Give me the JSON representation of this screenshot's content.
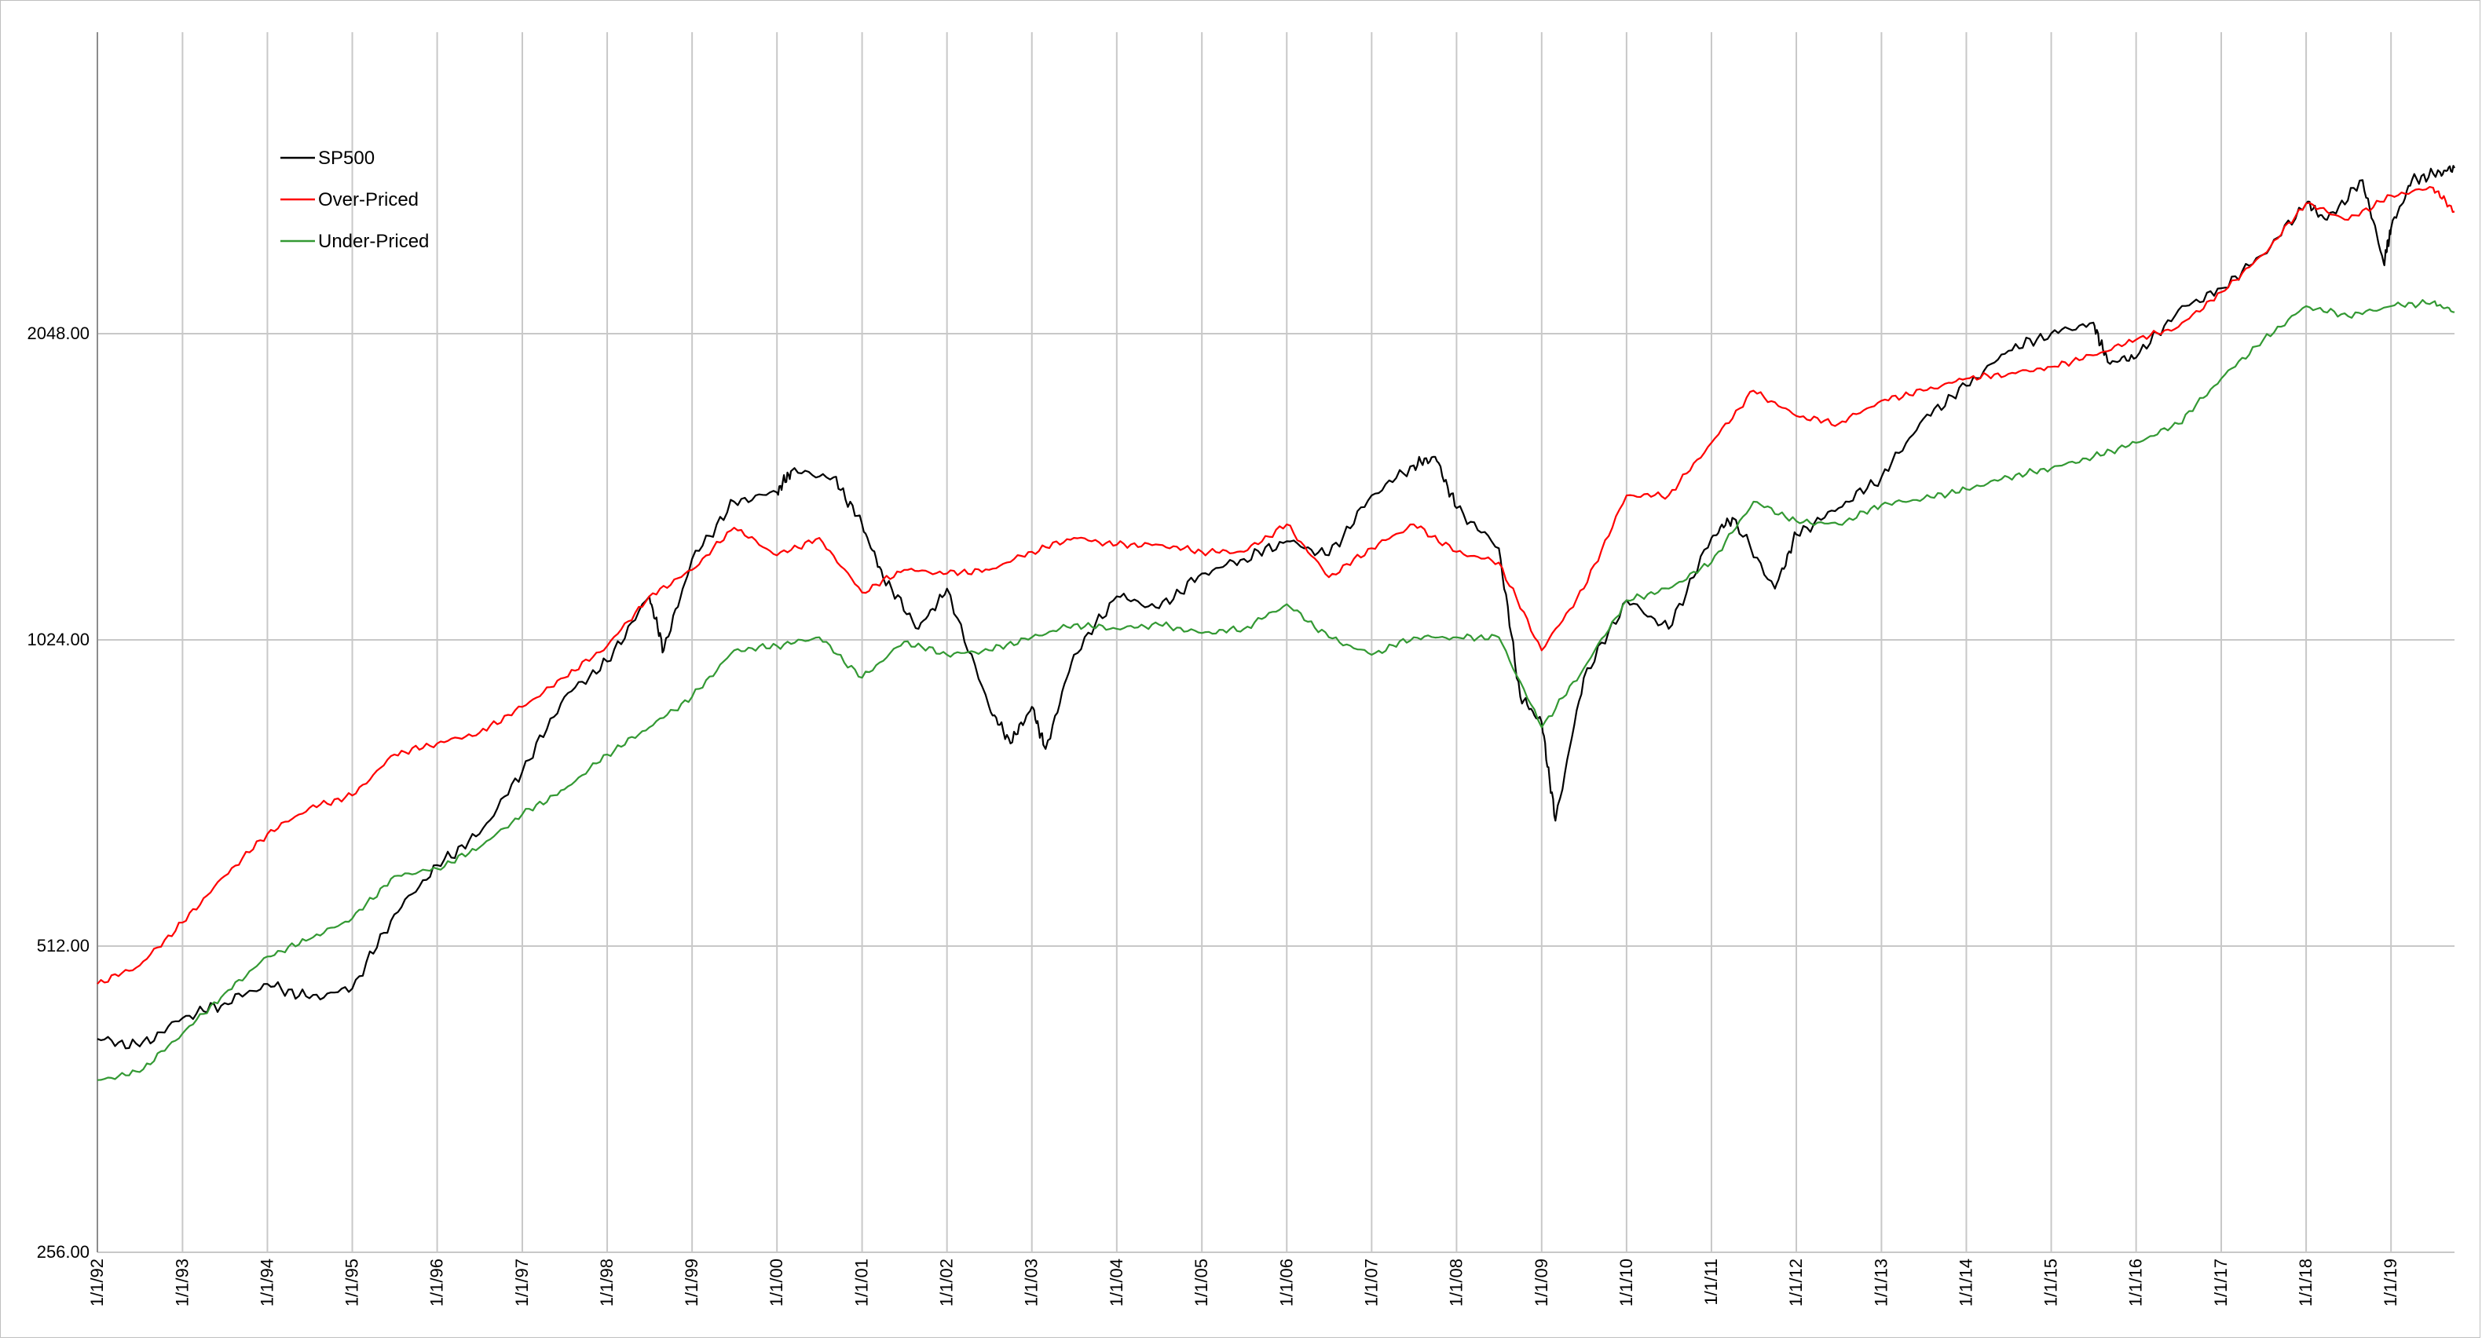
{
  "chart_data": {
    "type": "line",
    "title": "",
    "xlabel": "",
    "ylabel": "",
    "y_scale": "log2",
    "ylim": [
      256,
      3100
    ],
    "y_ticks": [
      256,
      512,
      1024,
      2048
    ],
    "y_tick_labels": [
      "256.00",
      "512.00",
      "1024.00",
      "2048.00"
    ],
    "xlim": [
      "1992-01-01",
      "2019-10-01"
    ],
    "x_tick_labels": [
      "1/1/92",
      "1/1/93",
      "1/1/94",
      "1/1/95",
      "1/1/96",
      "1/1/97",
      "1/1/98",
      "1/1/99",
      "1/1/00",
      "1/1/01",
      "1/1/02",
      "1/1/03",
      "1/1/04",
      "1/1/05",
      "1/1/06",
      "1/1/07",
      "1/1/08",
      "1/1/09",
      "1/1/10",
      "1/1/11",
      "1/1/12",
      "1/1/13",
      "1/1/14",
      "1/1/15",
      "1/1/16",
      "1/1/17",
      "1/1/18",
      "1/1/19"
    ],
    "x_tick_dates": [
      "1992-01-01",
      "1993-01-01",
      "1994-01-01",
      "1995-01-01",
      "1996-01-01",
      "1997-01-01",
      "1998-01-01",
      "1999-01-01",
      "2000-01-01",
      "2001-01-01",
      "2002-01-01",
      "2003-01-01",
      "2004-01-01",
      "2005-01-01",
      "2006-01-01",
      "2007-01-01",
      "2008-01-01",
      "2009-01-01",
      "2010-01-01",
      "2011-01-01",
      "2012-01-01",
      "2013-01-01",
      "2014-01-01",
      "2015-01-01",
      "2016-01-01",
      "2017-01-01",
      "2018-01-01",
      "2019-01-01"
    ],
    "grid": true,
    "legend_position": "top-left",
    "series": [
      {
        "name": "SP500",
        "color": "#000000",
        "points": [
          [
            "1992-01-01",
            415
          ],
          [
            "1992-07-01",
            408
          ],
          [
            "1993-01-01",
            435
          ],
          [
            "1993-07-01",
            450
          ],
          [
            "1994-01-01",
            470
          ],
          [
            "1994-07-01",
            455
          ],
          [
            "1995-01-01",
            465
          ],
          [
            "1995-07-01",
            550
          ],
          [
            "1996-01-01",
            615
          ],
          [
            "1996-07-01",
            660
          ],
          [
            "1997-01-01",
            760
          ],
          [
            "1997-07-01",
            900
          ],
          [
            "1998-01-01",
            975
          ],
          [
            "1998-07-01",
            1130
          ],
          [
            "1998-09-01",
            1000
          ],
          [
            "1999-01-01",
            1230
          ],
          [
            "1999-07-01",
            1400
          ],
          [
            "2000-01-01",
            1430
          ],
          [
            "2000-03-01",
            1500
          ],
          [
            "2000-09-01",
            1480
          ],
          [
            "2001-01-01",
            1330
          ],
          [
            "2001-04-01",
            1180
          ],
          [
            "2001-09-01",
            1050
          ],
          [
            "2002-01-01",
            1150
          ],
          [
            "2002-07-01",
            880
          ],
          [
            "2002-10-01",
            810
          ],
          [
            "2003-01-01",
            880
          ],
          [
            "2003-03-01",
            800
          ],
          [
            "2003-07-01",
            990
          ],
          [
            "2004-01-01",
            1130
          ],
          [
            "2004-07-01",
            1100
          ],
          [
            "2005-01-01",
            1190
          ],
          [
            "2005-07-01",
            1230
          ],
          [
            "2006-01-01",
            1280
          ],
          [
            "2006-07-01",
            1240
          ],
          [
            "2007-01-01",
            1420
          ],
          [
            "2007-07-01",
            1520
          ],
          [
            "2007-10-01",
            1550
          ],
          [
            "2008-01-01",
            1380
          ],
          [
            "2008-07-01",
            1260
          ],
          [
            "2008-10-01",
            900
          ],
          [
            "2009-01-01",
            850
          ],
          [
            "2009-03-01",
            680
          ],
          [
            "2009-07-01",
            940
          ],
          [
            "2010-01-01",
            1120
          ],
          [
            "2010-07-01",
            1050
          ],
          [
            "2011-01-01",
            1290
          ],
          [
            "2011-04-01",
            1350
          ],
          [
            "2011-10-01",
            1150
          ],
          [
            "2012-01-01",
            1300
          ],
          [
            "2012-07-01",
            1380
          ],
          [
            "2013-01-01",
            1480
          ],
          [
            "2013-07-01",
            1690
          ],
          [
            "2014-01-01",
            1820
          ],
          [
            "2014-07-01",
            1970
          ],
          [
            "2015-01-01",
            2050
          ],
          [
            "2015-07-01",
            2100
          ],
          [
            "2015-09-01",
            1920
          ],
          [
            "2016-01-01",
            1940
          ],
          [
            "2016-07-01",
            2160
          ],
          [
            "2017-01-01",
            2270
          ],
          [
            "2017-07-01",
            2450
          ],
          [
            "2018-01-01",
            2750
          ],
          [
            "2018-04-01",
            2650
          ],
          [
            "2018-09-01",
            2900
          ],
          [
            "2018-12-01",
            2400
          ],
          [
            "2019-01-01",
            2600
          ],
          [
            "2019-04-01",
            2900
          ],
          [
            "2019-08-01",
            2950
          ],
          [
            "2019-10-01",
            2980
          ]
        ]
      },
      {
        "name": "Over-Priced",
        "color": "#ff0000",
        "points": [
          [
            "1992-01-01",
            470
          ],
          [
            "1992-07-01",
            490
          ],
          [
            "1993-01-01",
            540
          ],
          [
            "1993-07-01",
            600
          ],
          [
            "1994-01-01",
            660
          ],
          [
            "1994-07-01",
            700
          ],
          [
            "1995-01-01",
            720
          ],
          [
            "1995-07-01",
            790
          ],
          [
            "1996-01-01",
            810
          ],
          [
            "1996-07-01",
            830
          ],
          [
            "1997-01-01",
            880
          ],
          [
            "1997-07-01",
            940
          ],
          [
            "1998-01-01",
            1010
          ],
          [
            "1998-07-01",
            1130
          ],
          [
            "1999-01-01",
            1200
          ],
          [
            "1999-07-01",
            1320
          ],
          [
            "2000-01-01",
            1240
          ],
          [
            "2000-07-01",
            1290
          ],
          [
            "2001-01-01",
            1140
          ],
          [
            "2001-07-01",
            1200
          ],
          [
            "2002-01-01",
            1190
          ],
          [
            "2002-07-01",
            1200
          ],
          [
            "2003-01-01",
            1250
          ],
          [
            "2003-07-01",
            1290
          ],
          [
            "2004-01-01",
            1270
          ],
          [
            "2004-07-01",
            1270
          ],
          [
            "2005-01-01",
            1250
          ],
          [
            "2005-07-01",
            1250
          ],
          [
            "2006-01-01",
            1330
          ],
          [
            "2006-07-01",
            1180
          ],
          [
            "2007-01-01",
            1260
          ],
          [
            "2007-07-01",
            1330
          ],
          [
            "2008-01-01",
            1250
          ],
          [
            "2008-07-01",
            1220
          ],
          [
            "2009-01-01",
            1000
          ],
          [
            "2009-07-01",
            1150
          ],
          [
            "2010-01-01",
            1420
          ],
          [
            "2010-07-01",
            1420
          ],
          [
            "2011-01-01",
            1600
          ],
          [
            "2011-07-01",
            1800
          ],
          [
            "2012-01-01",
            1700
          ],
          [
            "2012-07-01",
            1670
          ],
          [
            "2013-01-01",
            1760
          ],
          [
            "2013-07-01",
            1800
          ],
          [
            "2014-01-01",
            1850
          ],
          [
            "2014-07-01",
            1870
          ],
          [
            "2015-01-01",
            1900
          ],
          [
            "2015-07-01",
            1950
          ],
          [
            "2016-01-01",
            2020
          ],
          [
            "2016-07-01",
            2080
          ],
          [
            "2017-01-01",
            2250
          ],
          [
            "2017-07-01",
            2450
          ],
          [
            "2018-01-01",
            2750
          ],
          [
            "2018-07-01",
            2650
          ],
          [
            "2019-01-01",
            2800
          ],
          [
            "2019-07-01",
            2850
          ],
          [
            "2019-10-01",
            2700
          ]
        ]
      },
      {
        "name": "Under-Priced",
        "color": "#339933",
        "points": [
          [
            "1992-01-01",
            378
          ],
          [
            "1992-07-01",
            385
          ],
          [
            "1993-01-01",
            420
          ],
          [
            "1993-07-01",
            460
          ],
          [
            "1994-01-01",
            500
          ],
          [
            "1994-07-01",
            520
          ],
          [
            "1995-01-01",
            545
          ],
          [
            "1995-07-01",
            600
          ],
          [
            "1996-01-01",
            610
          ],
          [
            "1996-07-01",
            640
          ],
          [
            "1997-01-01",
            690
          ],
          [
            "1997-07-01",
            730
          ],
          [
            "1998-01-01",
            790
          ],
          [
            "1998-07-01",
            840
          ],
          [
            "1999-01-01",
            900
          ],
          [
            "1999-07-01",
            1000
          ],
          [
            "2000-01-01",
            1010
          ],
          [
            "2000-07-01",
            1030
          ],
          [
            "2001-01-01",
            940
          ],
          [
            "2001-07-01",
            1020
          ],
          [
            "2002-01-01",
            990
          ],
          [
            "2002-07-01",
            1000
          ],
          [
            "2003-01-01",
            1030
          ],
          [
            "2003-07-01",
            1060
          ],
          [
            "2004-01-01",
            1050
          ],
          [
            "2004-07-01",
            1060
          ],
          [
            "2005-01-01",
            1040
          ],
          [
            "2005-07-01",
            1050
          ],
          [
            "2006-01-01",
            1110
          ],
          [
            "2006-07-01",
            1030
          ],
          [
            "2007-01-01",
            990
          ],
          [
            "2007-07-01",
            1030
          ],
          [
            "2008-01-01",
            1030
          ],
          [
            "2008-07-01",
            1030
          ],
          [
            "2009-01-01",
            840
          ],
          [
            "2009-07-01",
            960
          ],
          [
            "2010-01-01",
            1120
          ],
          [
            "2010-07-01",
            1150
          ],
          [
            "2011-01-01",
            1220
          ],
          [
            "2011-07-01",
            1400
          ],
          [
            "2012-01-01",
            1340
          ],
          [
            "2012-07-01",
            1330
          ],
          [
            "2013-01-01",
            1390
          ],
          [
            "2013-07-01",
            1410
          ],
          [
            "2014-01-01",
            1440
          ],
          [
            "2014-07-01",
            1480
          ],
          [
            "2015-01-01",
            1510
          ],
          [
            "2015-07-01",
            1550
          ],
          [
            "2016-01-01",
            1600
          ],
          [
            "2016-07-01",
            1670
          ],
          [
            "2017-01-01",
            1850
          ],
          [
            "2017-07-01",
            2020
          ],
          [
            "2018-01-01",
            2180
          ],
          [
            "2018-07-01",
            2130
          ],
          [
            "2019-01-01",
            2180
          ],
          [
            "2019-07-01",
            2200
          ],
          [
            "2019-10-01",
            2150
          ]
        ]
      }
    ]
  }
}
